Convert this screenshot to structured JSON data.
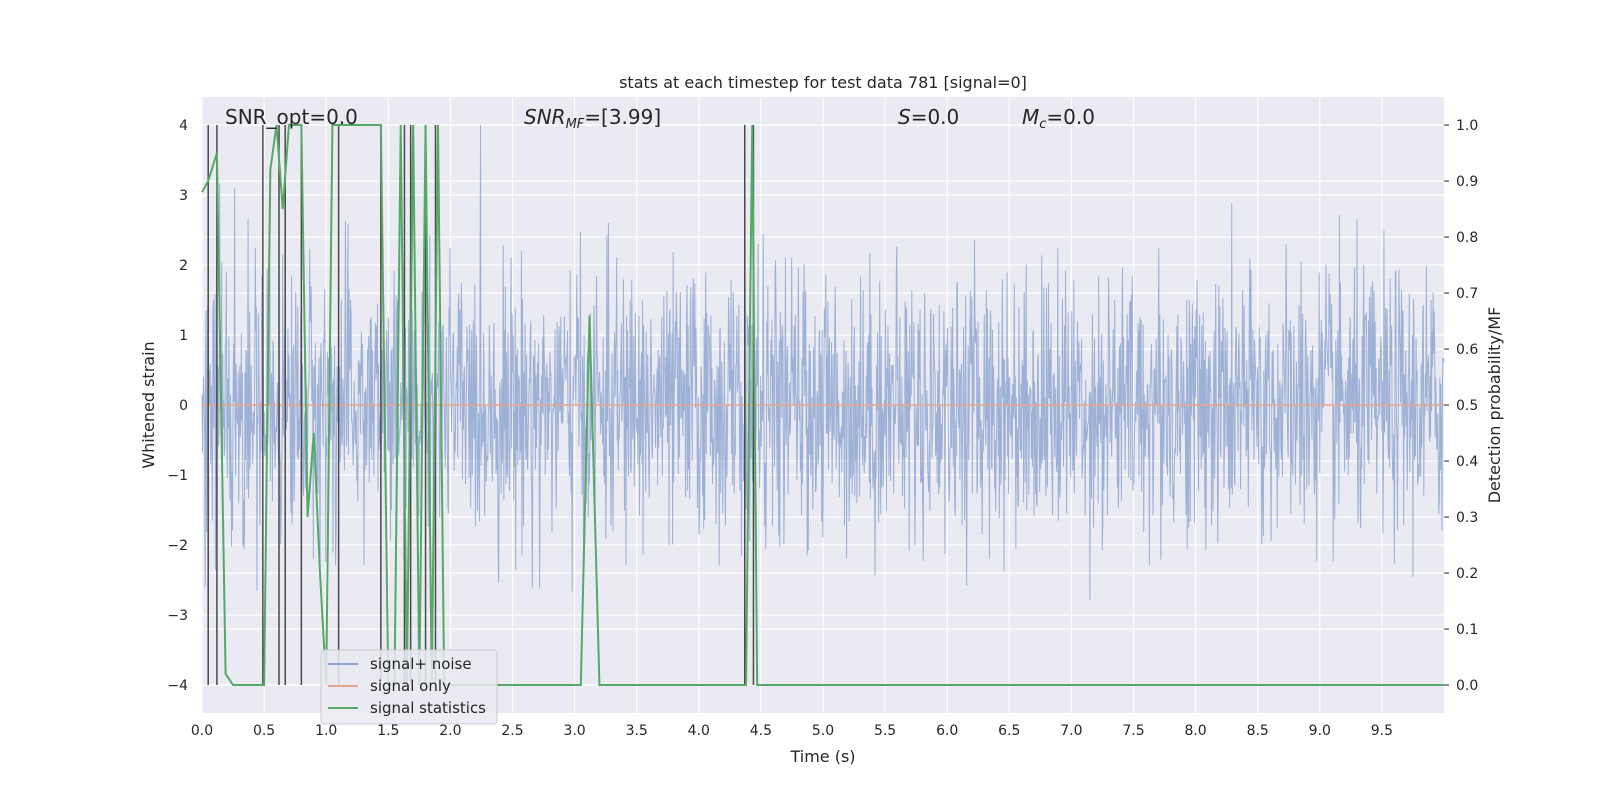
{
  "chart_data": {
    "type": "line",
    "title": "stats at each timestep for test data 781 [signal=0]",
    "xlabel": "Time (s)",
    "ylabel_left": "Whitened strain",
    "ylabel_right": "Detection probability/MF",
    "xlim": [
      0,
      10
    ],
    "ylim_left": [
      -4.4,
      4.4
    ],
    "ylim_right": [
      -0.05,
      1.05
    ],
    "x_ticks": [
      0.0,
      0.5,
      1.0,
      1.5,
      2.0,
      2.5,
      3.0,
      3.5,
      4.0,
      4.5,
      5.0,
      5.5,
      6.0,
      6.5,
      7.0,
      7.5,
      8.0,
      8.5,
      9.0,
      9.5
    ],
    "x_tick_labels": [
      "0.0",
      "0.5",
      "1.0",
      "1.5",
      "2.0",
      "2.5",
      "3.0",
      "3.5",
      "4.0",
      "4.5",
      "5.0",
      "5.5",
      "6.0",
      "6.5",
      "7.0",
      "7.5",
      "8.0",
      "8.5",
      "9.0",
      "9.5"
    ],
    "y_left_ticks": [
      -4,
      -3,
      -2,
      -1,
      0,
      1,
      2,
      3,
      4
    ],
    "y_left_tick_labels": [
      "−4",
      "−3",
      "−2",
      "−1",
      "0",
      "1",
      "2",
      "3",
      "4"
    ],
    "y_right_ticks": [
      0.0,
      0.1,
      0.2,
      0.3,
      0.4,
      0.5,
      0.6,
      0.7,
      0.8,
      0.9,
      1.0
    ],
    "y_right_tick_labels": [
      "0.0",
      "0.1",
      "0.2",
      "0.3",
      "0.4",
      "0.5",
      "0.6",
      "0.7",
      "0.8",
      "0.9",
      "1.0"
    ],
    "grid": true,
    "legend_position": "lower-left",
    "annotations": {
      "snr_opt": "SNR_opt=0.0",
      "snr_mf": "=[3.99]",
      "snr_mf_prefix": "SNR",
      "snr_mf_sub": "MF",
      "s_stat": "=0.0",
      "s_prefix": "S",
      "mc_stat": "=0.0",
      "mc_prefix": "M",
      "mc_sub": "c"
    },
    "series": [
      {
        "name": "signal+ noise",
        "color": "#8fa6d0",
        "kind": "noise",
        "note_range": [
          -4.0,
          4.0
        ]
      },
      {
        "name": "signal only",
        "color": "#e8a58c",
        "x": [
          0,
          10
        ],
        "y": [
          0,
          0
        ]
      },
      {
        "name": "signal statistics",
        "color": "#55a868",
        "axis": "right",
        "x": [
          0.0,
          0.05,
          0.12,
          0.19,
          0.25,
          0.5,
          0.55,
          0.6,
          0.65,
          0.7,
          0.75,
          0.8,
          0.85,
          0.9,
          0.95,
          1.0,
          1.05,
          1.1,
          1.44,
          1.5,
          1.55,
          1.6,
          1.65,
          1.7,
          1.75,
          1.8,
          1.85,
          1.9,
          1.95,
          2.0,
          3.05,
          3.12,
          3.2,
          4.38,
          4.43,
          4.47,
          10.0
        ],
        "y": [
          0.88,
          0.9,
          0.95,
          0.02,
          0.0,
          0.0,
          0.92,
          1.0,
          0.85,
          1.0,
          1.0,
          1.0,
          0.3,
          0.45,
          0.2,
          0.0,
          1.0,
          1.0,
          1.0,
          0.0,
          0.0,
          1.0,
          0.0,
          1.0,
          0.0,
          1.0,
          0.0,
          1.0,
          0.0,
          0.0,
          0.0,
          0.66,
          0.0,
          0.0,
          1.0,
          0.0,
          0.0
        ]
      },
      {
        "name": "",
        "color": "#4a4a4a",
        "kind": "vlines",
        "x": [
          0.05,
          0.12,
          0.49,
          0.62,
          0.67,
          0.8,
          1.1,
          1.44,
          1.63,
          1.68,
          1.8,
          1.88,
          4.37,
          4.44
        ]
      }
    ]
  }
}
